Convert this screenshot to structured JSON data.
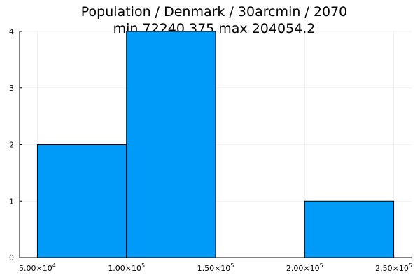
{
  "chart_data": {
    "type": "bar",
    "title": "Population / Denmark / 30arcmin / 2070",
    "subtitle": "min 72240.375  max 204054.2",
    "xlabel": "",
    "ylabel": "",
    "bins": [
      {
        "x0": 50000,
        "x1": 100000,
        "count": 2
      },
      {
        "x0": 100000,
        "x1": 150000,
        "count": 4
      },
      {
        "x0": 150000,
        "x1": 200000,
        "count": 0
      },
      {
        "x0": 200000,
        "x1": 250000,
        "count": 1
      }
    ],
    "xlim": [
      40000,
      260000
    ],
    "ylim": [
      0,
      4
    ],
    "x_ticks": [
      {
        "value": 50000,
        "mantissa": "5.00×10",
        "exponent": "4"
      },
      {
        "value": 100000,
        "mantissa": "1.00×10",
        "exponent": "5"
      },
      {
        "value": 150000,
        "mantissa": "1.50×10",
        "exponent": "5"
      },
      {
        "value": 200000,
        "mantissa": "2.00×10",
        "exponent": "5"
      },
      {
        "value": 250000,
        "mantissa": "2.50×10",
        "exponent": "5"
      }
    ],
    "y_ticks": [
      {
        "value": 0,
        "label": "0"
      },
      {
        "value": 1,
        "label": "1"
      },
      {
        "value": 2,
        "label": "2"
      },
      {
        "value": 3,
        "label": "3"
      },
      {
        "value": 4,
        "label": "4"
      }
    ],
    "bar_color": "#009af9",
    "grid": true,
    "legend": "none"
  }
}
